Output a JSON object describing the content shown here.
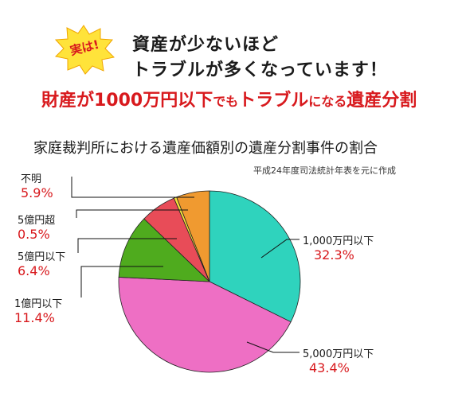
{
  "header": {
    "badge": "実は!",
    "headline_line1": "資産が少ないほど",
    "headline_line2": "トラブルが多くなっています！",
    "subhead": [
      {
        "text": "財産が1000万円以下",
        "size": "big"
      },
      {
        "text": "でも",
        "size": "small"
      },
      {
        "text": "トラブル",
        "size": "big"
      },
      {
        "text": "になる",
        "size": "small"
      },
      {
        "text": "遺産分割",
        "size": "big"
      }
    ]
  },
  "colors": {
    "accent_red": "#d8191d",
    "badge_fill": "#ffe33a"
  },
  "chart_data": {
    "type": "pie",
    "title": "家庭裁判所における遺産価額別の遺産分割事件の割合",
    "source_note": "平成24年度司法統計年表を元に作成",
    "start_angle_deg": 0,
    "direction": "clockwise",
    "slices": [
      {
        "label": "1,000万円以下",
        "value": 32.3,
        "value_label": "32.3%",
        "color": "#2fd3bd"
      },
      {
        "label": "5,000万円以下",
        "value": 43.4,
        "value_label": "43.4%",
        "color": "#ee6fc4"
      },
      {
        "label": "1億円以下",
        "value": 11.4,
        "value_label": "11.4%",
        "color": "#4fab1e"
      },
      {
        "label": "5億円以下",
        "value": 6.4,
        "value_label": "6.4%",
        "color": "#e84c58"
      },
      {
        "label": "5億円超",
        "value": 0.5,
        "value_label": "0.5%",
        "color": "#f4e23c"
      },
      {
        "label": "不明",
        "value": 5.9,
        "value_label": "5.9%",
        "color": "#f09a30"
      }
    ]
  }
}
